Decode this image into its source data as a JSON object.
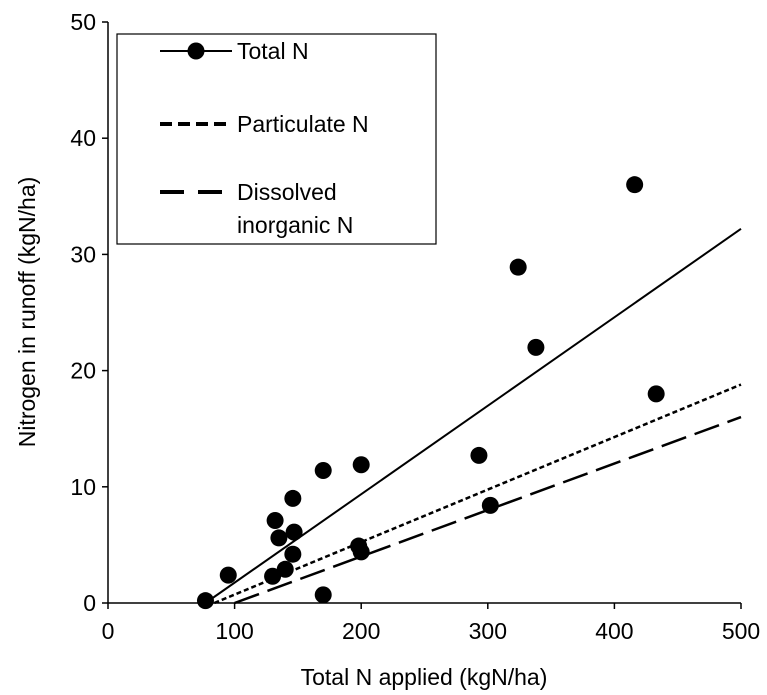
{
  "chart_data": {
    "type": "scatter",
    "xlabel": "Total N applied  (kgN/ha)",
    "ylabel": "Nitrogen in runoff  (kgN/ha)",
    "xlim": [
      0,
      500
    ],
    "ylim": [
      0,
      50
    ],
    "xticks": [
      "0",
      "100",
      "200",
      "300",
      "400",
      "500"
    ],
    "yticks": [
      "0",
      "10",
      "20",
      "30",
      "40",
      "50"
    ],
    "grid": false,
    "legend_position": "top-left",
    "points": {
      "name": "Total N",
      "x": [
        77,
        95,
        130,
        132,
        135,
        140,
        146,
        147,
        146,
        170,
        170,
        198,
        200,
        200,
        293,
        302,
        324,
        338,
        416,
        433
      ],
      "y": [
        0.2,
        2.4,
        2.3,
        7.1,
        5.6,
        2.9,
        4.2,
        6.1,
        9.0,
        11.4,
        0.7,
        4.9,
        4.4,
        11.9,
        12.7,
        8.4,
        28.9,
        22.0,
        36.0,
        18.0
      ]
    },
    "trendlines": [
      {
        "name": "Total N",
        "style": "solid",
        "x": [
          77,
          500
        ],
        "y": [
          0,
          32.2
        ]
      },
      {
        "name": "Particulate N",
        "style": "dotted",
        "x": [
          84,
          500
        ],
        "y": [
          0,
          18.8
        ]
      },
      {
        "name": "Dissolved inorganic N",
        "style": "long-dash",
        "x": [
          100,
          500
        ],
        "y": [
          0,
          16.0
        ]
      }
    ],
    "legend": [
      {
        "lines": [
          "Total N"
        ],
        "style": "solid",
        "marker": true
      },
      {
        "lines": [
          "Particulate N"
        ],
        "style": "dotted",
        "marker": false
      },
      {
        "lines": [
          "Dissolved",
          "inorganic N"
        ],
        "style": "long-dash",
        "marker": false
      }
    ]
  }
}
